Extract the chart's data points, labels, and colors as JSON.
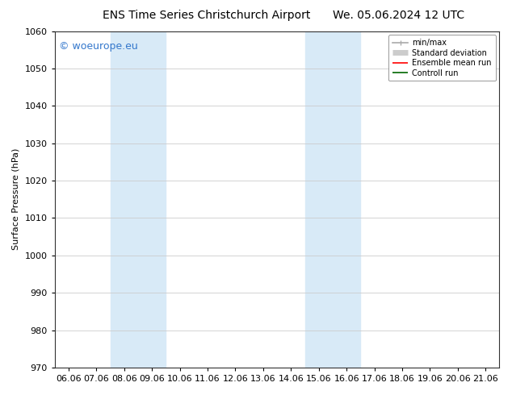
{
  "title_left": "ENS Time Series Christchurch Airport",
  "title_right": "We. 05.06.2024 12 UTC",
  "ylabel": "Surface Pressure (hPa)",
  "ylim": [
    970,
    1060
  ],
  "yticks": [
    970,
    980,
    990,
    1000,
    1010,
    1020,
    1030,
    1040,
    1050,
    1060
  ],
  "xlabel_ticks": [
    "06.06",
    "07.06",
    "08.06",
    "09.06",
    "10.06",
    "11.06",
    "12.06",
    "13.06",
    "14.06",
    "15.06",
    "16.06",
    "17.06",
    "18.06",
    "19.06",
    "20.06",
    "21.06"
  ],
  "shaded_bands": [
    {
      "xstart": 2,
      "xend": 4
    },
    {
      "xstart": 9,
      "xend": 11
    }
  ],
  "shaded_color": "#d8eaf7",
  "watermark_text": "© woeurope.eu",
  "watermark_color": "#3377cc",
  "legend_entries": [
    {
      "label": "min/max",
      "color": "#aaaaaa",
      "lw": 1.2,
      "linestyle": "-"
    },
    {
      "label": "Standard deviation",
      "color": "#cccccc",
      "lw": 6,
      "linestyle": "-"
    },
    {
      "label": "Ensemble mean run",
      "color": "#ff0000",
      "lw": 1.2,
      "linestyle": "-"
    },
    {
      "label": "Controll run",
      "color": "#006600",
      "lw": 1.2,
      "linestyle": "-"
    }
  ],
  "bg_color": "#ffffff",
  "grid_color": "#cccccc",
  "font_size": 8,
  "title_fontsize": 10,
  "watermark_fontsize": 9
}
